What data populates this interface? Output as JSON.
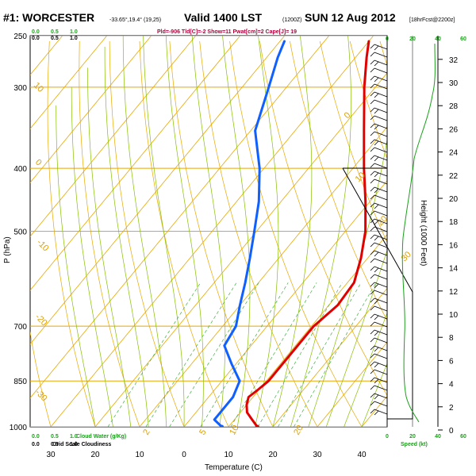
{
  "header": {
    "station": "#1: WORCESTER",
    "coords": "-33.65°,19.4° (19,25)",
    "valid": "Valid 1400 LST",
    "utc": "(1200Z)",
    "date": "SUN 12 Aug 2012",
    "forecast": "[18hrFcst@2200z]",
    "indices": "Pld=-906 Tld[C]=-2 Show=11 Pwat[cm]=2 Cape[J]= 19"
  },
  "chart_data": {
    "type": "line",
    "chart_kind": "skew-T log-P sounding",
    "xlabel": "Temperature (C)",
    "ylabel": "P (hPa)",
    "right_label": "Height (1000 Feet)",
    "speed_label": "Speed (kt)",
    "pressure_ticks": [
      250,
      300,
      400,
      500,
      700,
      850,
      1000
    ],
    "temperature_ticks": [
      30,
      20,
      10,
      0,
      10,
      20,
      30,
      40
    ],
    "temperature_tick_values": [
      -30,
      -20,
      -10,
      0,
      10,
      20,
      30,
      40
    ],
    "height_ticks": [
      0,
      2,
      4,
      6,
      8,
      10,
      12,
      14,
      16,
      18,
      20,
      22,
      24,
      26,
      28,
      30,
      32
    ],
    "speed_ticks_top": [
      "0",
      "20",
      "40",
      "60"
    ],
    "speed_ticks_bottom": [
      "0",
      "20",
      "40",
      "60"
    ],
    "cloud_water_ticks": [
      "0.0",
      "0.5",
      "1.0"
    ],
    "cloud_water_label": "Cloud Water (g/Kg)",
    "grid_cloudiness_label": "Grid Scale Cloudiness",
    "isotherm_labels": [
      "0",
      "10",
      "20",
      "30",
      "10",
      "0",
      "-10",
      "-20",
      "-30"
    ],
    "mixing_ratio_labels": [
      "2",
      "5",
      "10",
      "20"
    ],
    "temperature_C": [
      {
        "p": 1000,
        "t": 16.5
      },
      {
        "p": 975,
        "t": 14.0
      },
      {
        "p": 950,
        "t": 11.5
      },
      {
        "p": 925,
        "t": 10.0
      },
      {
        "p": 900,
        "t": 9.0
      },
      {
        "p": 875,
        "t": 9.8
      },
      {
        "p": 850,
        "t": 10.5
      },
      {
        "p": 800,
        "t": 10.5
      },
      {
        "p": 750,
        "t": 10.5
      },
      {
        "p": 700,
        "t": 10.5
      },
      {
        "p": 650,
        "t": 12.0
      },
      {
        "p": 600,
        "t": 11.5
      },
      {
        "p": 550,
        "t": 8.5
      },
      {
        "p": 500,
        "t": 4.5
      },
      {
        "p": 450,
        "t": -1.0
      },
      {
        "p": 400,
        "t": -7.5
      },
      {
        "p": 350,
        "t": -14.5
      },
      {
        "p": 300,
        "t": -22.5
      },
      {
        "p": 270,
        "t": -27.5
      },
      {
        "p": 255,
        "t": -30.0
      }
    ],
    "dewpoint_C": [
      {
        "p": 1000,
        "t": 8.5
      },
      {
        "p": 975,
        "t": 5.5
      },
      {
        "p": 950,
        "t": 5.5
      },
      {
        "p": 900,
        "t": 5.5
      },
      {
        "p": 850,
        "t": 4.0
      },
      {
        "p": 800,
        "t": -1.0
      },
      {
        "p": 750,
        "t": -6.0
      },
      {
        "p": 700,
        "t": -7.0
      },
      {
        "p": 650,
        "t": -10.0
      },
      {
        "p": 600,
        "t": -13.0
      },
      {
        "p": 550,
        "t": -16.5
      },
      {
        "p": 500,
        "t": -20.5
      },
      {
        "p": 450,
        "t": -25.0
      },
      {
        "p": 400,
        "t": -31.0
      },
      {
        "p": 350,
        "t": -39.0
      },
      {
        "p": 300,
        "t": -44.0
      },
      {
        "p": 270,
        "t": -47.5
      },
      {
        "p": 255,
        "t": -49.0
      }
    ],
    "colors": {
      "temperature": "#e00000",
      "dewpoint": "#1060ff",
      "isotherm_isobar": "#e8a800",
      "dry_adiabat": "#e8a800",
      "moist_adiabat": "#88c000",
      "mixing_ratio": "#40b040",
      "speed_profile": "#1aa01a"
    }
  }
}
